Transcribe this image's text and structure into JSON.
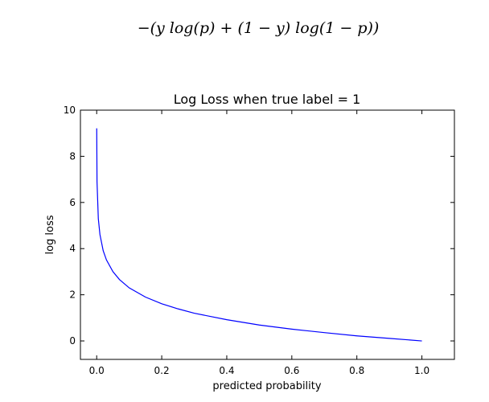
{
  "formula": "−(y log(p) + (1 − y) log(1 − p))",
  "chart_data": {
    "type": "line",
    "title": "Log Loss when true label = 1",
    "xlabel": "predicted probability",
    "ylabel": "log loss",
    "xlim": [
      -0.05,
      1.1
    ],
    "ylim": [
      -0.8,
      10
    ],
    "xticks": [
      "0.0",
      "0.2",
      "0.4",
      "0.6",
      "0.8",
      "1.0"
    ],
    "yticks": [
      "0",
      "2",
      "4",
      "6",
      "8",
      "10"
    ],
    "grid": false,
    "series": [
      {
        "function": "-log(p)",
        "color": "#0000ff",
        "x": [
          0.0001,
          0.001,
          0.005,
          0.01,
          0.02,
          0.03,
          0.05,
          0.07,
          0.1,
          0.15,
          0.2,
          0.25,
          0.3,
          0.4,
          0.5,
          0.6,
          0.7,
          0.8,
          0.9,
          1.0
        ],
        "y": [
          9.21,
          6.91,
          5.3,
          4.61,
          3.91,
          3.51,
          3.0,
          2.66,
          2.3,
          1.9,
          1.61,
          1.39,
          1.2,
          0.92,
          0.69,
          0.51,
          0.36,
          0.22,
          0.11,
          0.0
        ]
      }
    ]
  }
}
